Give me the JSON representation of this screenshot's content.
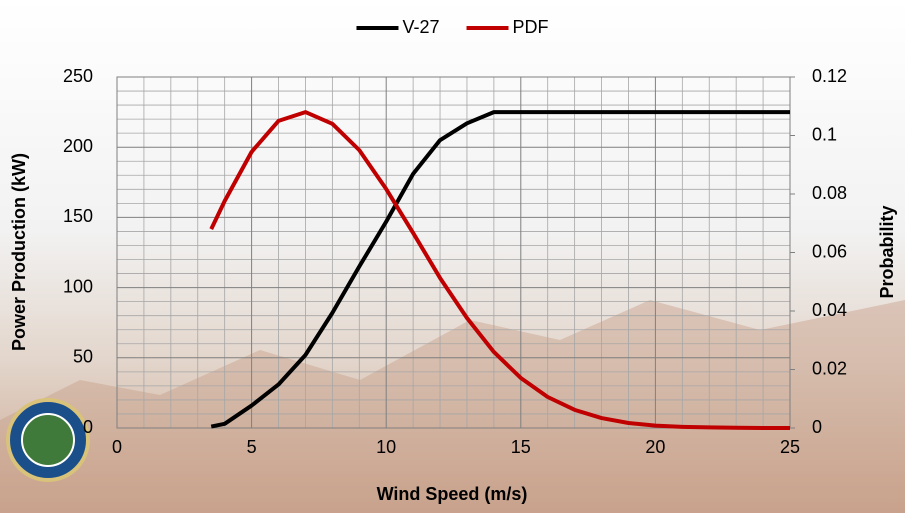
{
  "chart_data": {
    "type": "line",
    "x": [
      3.5,
      4,
      5,
      6,
      7,
      8,
      9,
      10,
      11,
      12,
      13,
      14,
      15,
      16,
      17,
      18,
      19,
      20,
      21,
      22,
      23,
      24,
      25
    ],
    "series": [
      {
        "name": "V-27",
        "color": "#000000",
        "axis": "y",
        "values": [
          1,
          3,
          16,
          31,
          52,
          82,
          115,
          147,
          181,
          205,
          217,
          225,
          225,
          225,
          225,
          225,
          225,
          225,
          225,
          225,
          225,
          225,
          225
        ]
      },
      {
        "name": "PDF",
        "color": "#c00000",
        "axis": "y2",
        "values": [
          0.068,
          0.0776,
          0.0944,
          0.105,
          0.108,
          0.104,
          0.095,
          0.0817,
          0.0667,
          0.0513,
          0.0376,
          0.026,
          0.0171,
          0.0106,
          0.0062,
          0.0034,
          0.0017,
          0.0008,
          0.0004,
          0.0002,
          0.0001,
          0,
          0
        ]
      }
    ],
    "xlabel": "Wind Speed (m/s)",
    "ylabel": "Power Production (kW)",
    "y2label": "Probability",
    "xlim": [
      0,
      25
    ],
    "xticks": [
      0,
      5,
      10,
      15,
      20,
      25
    ],
    "ylim": [
      0,
      250
    ],
    "yticks": [
      0,
      50,
      100,
      150,
      200,
      250
    ],
    "y2lim": [
      0,
      0.12
    ],
    "y2ticks": [
      0,
      0.02,
      0.04,
      0.06,
      0.08,
      0.1,
      0.12
    ],
    "grid": true,
    "legend": "top"
  }
}
